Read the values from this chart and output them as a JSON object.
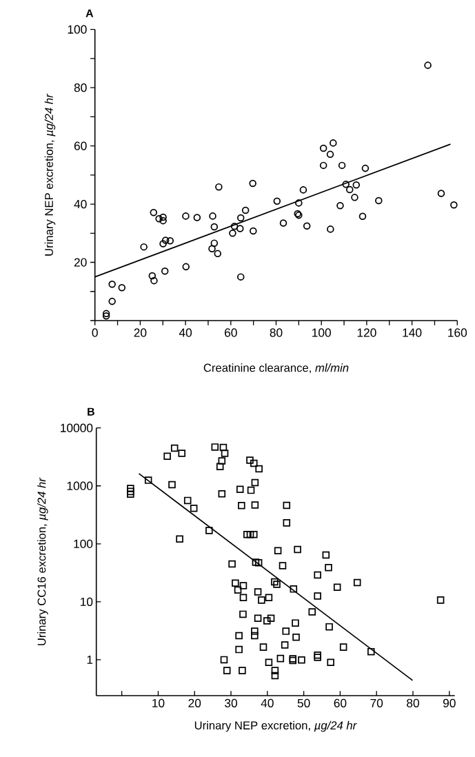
{
  "chart_data": [
    {
      "type": "scatter",
      "title": "A",
      "xlabel": "Creatinine clearance, *ml/min*",
      "ylabel": "Urinary NEP excretion, *µg/24 hr*",
      "xlim": [
        0,
        160
      ],
      "ylim": [
        0,
        100
      ],
      "xticks": [
        0,
        {
          "value": 10,
          "label": null
        },
        20,
        {
          "value": 30,
          "label": null
        },
        40,
        {
          "value": 50,
          "label": null
        },
        60,
        {
          "value": 70,
          "label": null
        },
        80,
        {
          "value": 90,
          "label": null
        },
        100,
        {
          "value": 110,
          "label": null
        },
        120,
        {
          "value": 130,
          "label": null
        },
        140,
        {
          "value": 150,
          "label": null
        },
        160
      ],
      "yticks": [
        {
          "value": 0,
          "label": null
        },
        {
          "value": 10,
          "label": null
        },
        20,
        {
          "value": 30,
          "label": null
        },
        40,
        {
          "value": 50,
          "label": null
        },
        60,
        {
          "value": 70,
          "label": null
        },
        80,
        {
          "value": 90,
          "label": null
        },
        100
      ],
      "marker": "circle",
      "series": [
        {
          "type": "scatter",
          "color": "#000000",
          "x": [
            5,
            5,
            7.6,
            11.9,
            7.6,
            21.6,
            25.9,
            28.3,
            30.1,
            30.1,
            30.1,
            31.2,
            33.2,
            25.3,
            26.1,
            30.9,
            40.1,
            45.1,
            40.2,
            52,
            52.7,
            54.7,
            52.7,
            51.7,
            54.2,
            64.4,
            60.8,
            61.6,
            64.1,
            64.4,
            66.5,
            69.7,
            69.9,
            80.4,
            83.2,
            90,
            89.5,
            90,
            92,
            93.6,
            100.9,
            105.2,
            103.9,
            100.9,
            109.1,
            119.4,
            110.8,
            112.5,
            115.4,
            114.7,
            108.3,
            125.3,
            118.2,
            104,
            147,
            152.9,
            158.5
          ],
          "values": [
            2.4,
            1.6,
            12.5,
            11.3,
            6.6,
            25.3,
            37.1,
            35,
            35.5,
            34.3,
            26.4,
            27.6,
            27.4,
            15.4,
            13.7,
            17,
            35.9,
            35.4,
            18.5,
            35.9,
            32.2,
            45.9,
            26.6,
            24.7,
            23,
            15,
            30,
            32.4,
            31.6,
            35.3,
            37.9,
            47.1,
            30.8,
            41,
            33.5,
            40.4,
            36.7,
            36.2,
            44.9,
            32.5,
            59.2,
            61,
            57.1,
            53.3,
            53.3,
            52.3,
            46.8,
            45,
            46.6,
            42.3,
            39.5,
            41.2,
            35.8,
            31.4,
            87.7,
            43.7,
            39.7
          ]
        },
        {
          "type": "line",
          "color": "#000000",
          "marker": "none",
          "x": [
            0,
            157
          ],
          "values": [
            15,
            60.6
          ]
        }
      ]
    },
    {
      "type": "scatter",
      "title": "B",
      "xlabel": "Urinary NEP excretion, *µg/24 hr*",
      "ylabel": "Urinary CC16 excretion, *µg/24 hr*",
      "log": "y",
      "xlim": [
        -7,
        91.5
      ],
      "ylim": [
        0.24,
        10000
      ],
      "xticks": [
        {
          "value": 0,
          "label": null
        },
        10,
        20,
        30,
        40,
        50,
        60,
        70,
        80,
        90
      ],
      "yticks": [
        1,
        10,
        100,
        1000,
        10000
      ],
      "marker": "square",
      "series": [
        {
          "type": "scatter",
          "color": "#000000",
          "x": [
            2.4,
            2.4,
            2.4,
            7.3,
            12.5,
            14.5,
            16.5,
            13.8,
            18.1,
            19.8,
            15.9,
            24,
            25.6,
            27.9,
            28.3,
            27.5,
            27,
            27.5,
            35.2,
            36.3,
            37.7,
            36.6,
            35.5,
            32.5,
            32.9,
            36.6,
            34.4,
            35.3,
            36.3,
            30.3,
            36.8,
            37.6,
            42.9,
            44.2,
            42,
            42.6,
            31.2,
            31.9,
            33.4,
            33.4,
            37.4,
            38.4,
            40.4,
            33.3,
            37.4,
            39.9,
            41,
            36.5,
            36.5,
            32.2,
            32.2,
            38.9,
            28.1,
            28.9,
            33.1,
            40.4,
            43.6,
            42.1,
            42.1,
            45.1,
            44.8,
            45.3,
            45.3,
            48.3,
            56.1,
            56.8,
            53.8,
            47.2,
            59.2,
            64.7,
            53.8,
            87.6,
            52.3,
            47.7,
            57,
            47.9,
            60.9,
            68.5,
            47,
            47,
            49.4,
            53.8,
            53.8,
            57.4
          ],
          "values": [
            900,
            800,
            720,
            1250,
            3250,
            4470,
            3640,
            1050,
            560,
            410,
            121,
            170,
            4680,
            4600,
            3640,
            2700,
            2150,
            730,
            2780,
            2450,
            1970,
            1140,
            840,
            870,
            457,
            468,
            145,
            145,
            145,
            45,
            48,
            47,
            76,
            42,
            22,
            20,
            21,
            16,
            19,
            11.8,
            14.8,
            10.7,
            11.8,
            6.1,
            5.2,
            4.7,
            5.2,
            3.1,
            2.6,
            2.6,
            1.5,
            1.65,
            1,
            0.65,
            0.65,
            0.9,
            1.05,
            0.65,
            0.53,
            3.1,
            1.8,
            460,
            230,
            80,
            64,
            39,
            29,
            16.6,
            17.8,
            21.4,
            12.6,
            10.7,
            6.7,
            4.3,
            3.7,
            2.45,
            1.65,
            1.38,
            1.04,
            0.97,
            0.99,
            1.2,
            1.1,
            0.9
          ]
        },
        {
          "type": "line",
          "color": "#000000",
          "marker": "none",
          "x": [
            4.7,
            79.9
          ],
          "values": [
            1630,
            0.44
          ]
        }
      ]
    }
  ]
}
